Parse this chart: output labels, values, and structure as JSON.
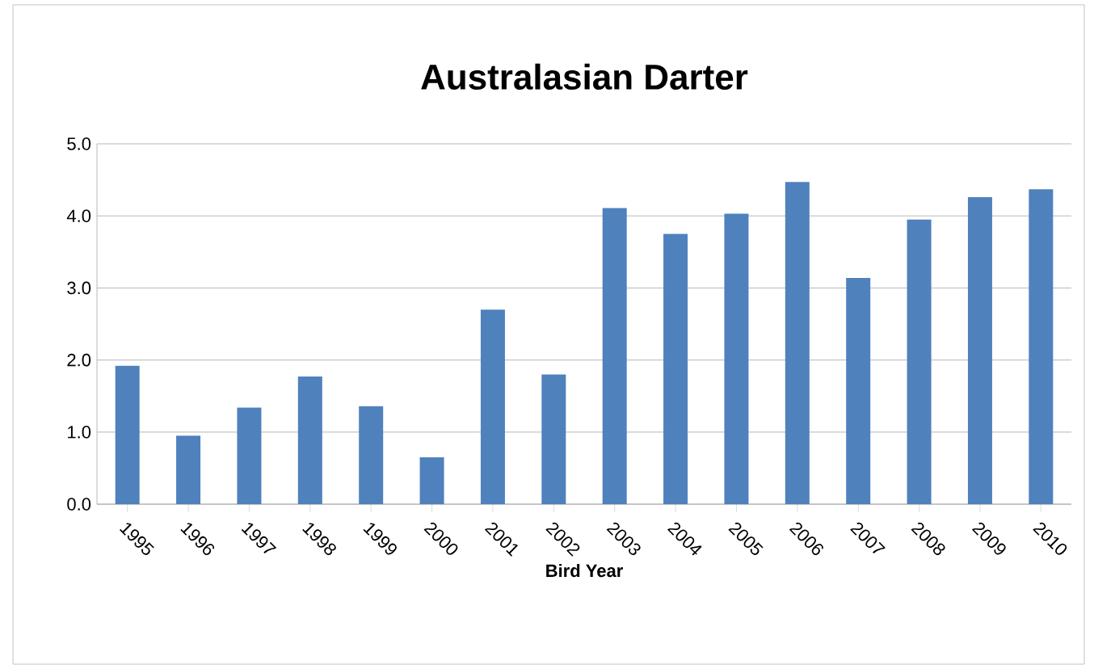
{
  "chart_data": {
    "type": "bar",
    "title": "Australasian Darter",
    "xlabel": "Bird Year",
    "categories": [
      "1995",
      "1996",
      "1997",
      "1998",
      "1999",
      "2000",
      "2001",
      "2002",
      "2003",
      "2004",
      "2005",
      "2006",
      "2007",
      "2008",
      "2009",
      "2010"
    ],
    "values": [
      1.92,
      0.95,
      1.34,
      1.77,
      1.36,
      0.65,
      2.7,
      1.8,
      4.11,
      3.75,
      4.03,
      4.47,
      3.14,
      3.95,
      4.26,
      4.37
    ],
    "color": "#4f81bd",
    "ylim": [
      0,
      5
    ],
    "yticks": [
      {
        "value": 0,
        "label": "0.0"
      },
      {
        "value": 1,
        "label": "1.0"
      },
      {
        "value": 2,
        "label": "2.0"
      },
      {
        "value": 3,
        "label": "3.0"
      },
      {
        "value": 4,
        "label": "4.0"
      },
      {
        "value": 5,
        "label": "5.0"
      }
    ],
    "grid": "y"
  }
}
